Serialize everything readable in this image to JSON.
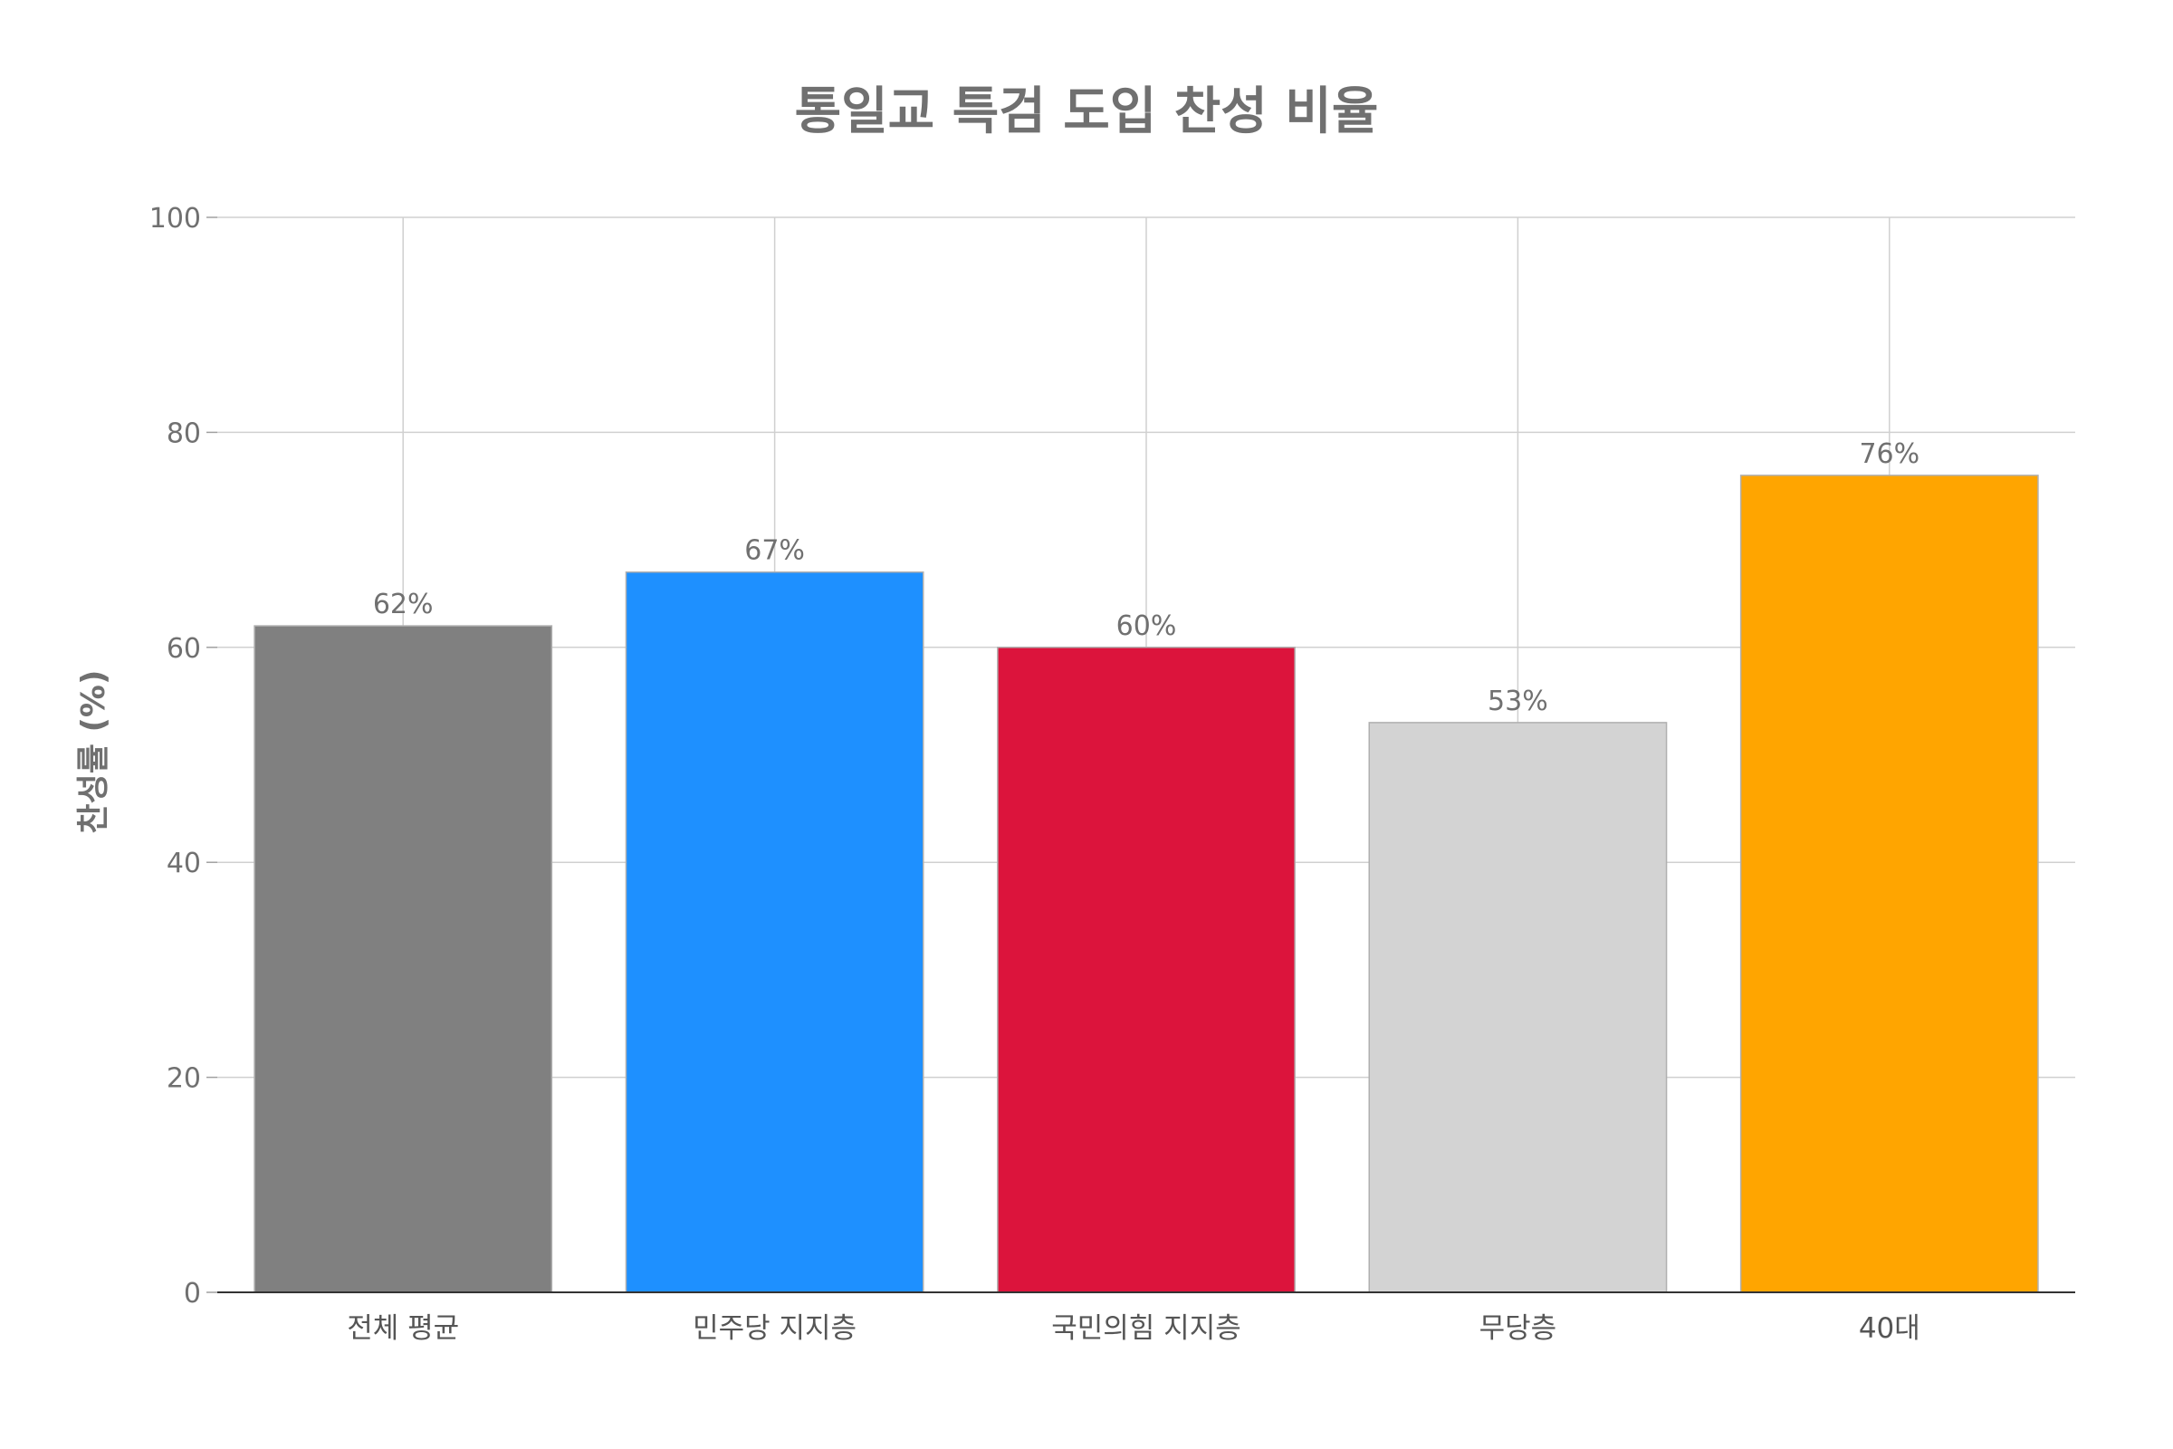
{
  "chart_data": {
    "type": "bar",
    "title": "통일교 특검 도입 찬성 비율",
    "xlabel": "",
    "ylabel": "찬성률 (%)",
    "categories": [
      "전체 평균",
      "민주당 지지층",
      "국민의힘 지지층",
      "무당층",
      "40대"
    ],
    "values": [
      62,
      67,
      60,
      53,
      76
    ],
    "value_labels": [
      "62%",
      "67%",
      "60%",
      "53%",
      "76%"
    ],
    "colors": [
      "#808080",
      "#1e90ff",
      "#dc143c",
      "#d3d3d3",
      "#ffa500"
    ],
    "ylim": [
      0,
      100
    ],
    "yticks": [
      0,
      20,
      40,
      60,
      80,
      100
    ],
    "ytick_labels": [
      "0",
      "20",
      "40",
      "60",
      "80",
      "100"
    ],
    "grid": true,
    "legend": "none"
  }
}
